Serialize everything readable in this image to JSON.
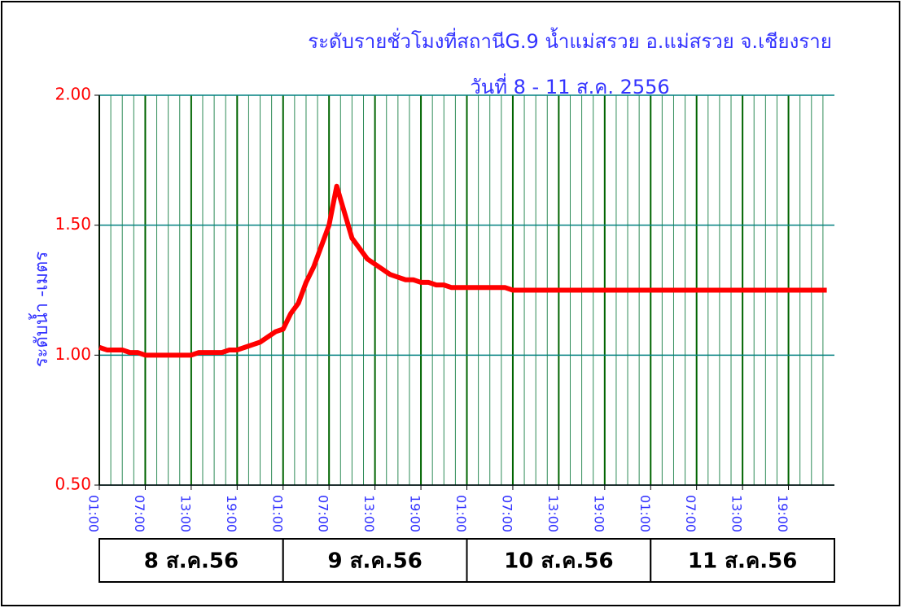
{
  "chart_data": {
    "type": "line",
    "title": "ระดับรายชั่วโมงที่สถานีG.9 น้ำแม่สรวย อ.แม่สรวย  จ.เชียงราย",
    "subtitle": "วันที่ 8 - 11 ส.ค. 2556",
    "y_label": "ระดับน้ำ -เมตร",
    "day_labels": [
      "8 ส.ค.56",
      "9 ส.ค.56",
      "10 ส.ค.56",
      "11 ส.ค.56"
    ],
    "x": [
      0,
      1,
      2,
      3,
      4,
      5,
      6,
      7,
      8,
      9,
      10,
      11,
      12,
      13,
      14,
      15,
      16,
      17,
      18,
      19,
      20,
      21,
      22,
      23,
      24,
      25,
      26,
      27,
      28,
      29,
      30,
      31,
      32,
      33,
      34,
      35,
      36,
      37,
      38,
      39,
      40,
      41,
      42,
      43,
      44,
      45,
      46,
      47,
      48,
      49,
      50,
      51,
      52,
      53,
      54,
      55,
      56,
      57,
      58,
      59,
      60,
      61,
      62,
      63,
      64,
      65,
      66,
      67,
      68,
      69,
      70,
      71,
      72,
      73,
      74,
      75,
      76,
      77,
      78,
      79,
      80,
      81,
      82,
      83,
      84,
      85,
      86,
      87,
      88,
      89,
      90,
      91,
      92,
      93,
      94,
      95
    ],
    "series": [
      {
        "name": "ระดับน้ำ",
        "color": "#ff0000",
        "values": [
          1.03,
          1.02,
          1.02,
          1.02,
          1.01,
          1.01,
          1.0,
          1.0,
          1.0,
          1.0,
          1.0,
          1.0,
          1.0,
          1.01,
          1.01,
          1.01,
          1.01,
          1.02,
          1.02,
          1.03,
          1.04,
          1.05,
          1.07,
          1.09,
          1.1,
          1.16,
          1.2,
          1.28,
          1.34,
          1.42,
          1.5,
          1.65,
          1.55,
          1.45,
          1.41,
          1.37,
          1.35,
          1.33,
          1.31,
          1.3,
          1.29,
          1.29,
          1.28,
          1.28,
          1.27,
          1.27,
          1.26,
          1.26,
          1.26,
          1.26,
          1.26,
          1.26,
          1.26,
          1.26,
          1.25,
          1.25,
          1.25,
          1.25,
          1.25,
          1.25,
          1.25,
          1.25,
          1.25,
          1.25,
          1.25,
          1.25,
          1.25,
          1.25,
          1.25,
          1.25,
          1.25,
          1.25,
          1.25,
          1.25,
          1.25,
          1.25,
          1.25,
          1.25,
          1.25,
          1.25,
          1.25,
          1.25,
          1.25,
          1.25,
          1.25,
          1.25,
          1.25,
          1.25,
          1.25,
          1.25,
          1.25,
          1.25,
          1.25,
          1.25,
          1.25,
          1.25
        ]
      }
    ],
    "xlim": [
      0,
      96
    ],
    "xticks": [
      {
        "value": 0,
        "label": "01:00"
      },
      {
        "value": 6,
        "label": "07:00"
      },
      {
        "value": 12,
        "label": "13:00"
      },
      {
        "value": 18,
        "label": "19:00"
      },
      {
        "value": 24,
        "label": "01:00"
      },
      {
        "value": 30,
        "label": "07:00"
      },
      {
        "value": 36,
        "label": "13:00"
      },
      {
        "value": 42,
        "label": "19:00"
      },
      {
        "value": 48,
        "label": "01:00"
      },
      {
        "value": 54,
        "label": "07:00"
      },
      {
        "value": 60,
        "label": "13:00"
      },
      {
        "value": 66,
        "label": "19:00"
      },
      {
        "value": 72,
        "label": "01:00"
      },
      {
        "value": 78,
        "label": "07:00"
      },
      {
        "value": 84,
        "label": "13:00"
      },
      {
        "value": 90,
        "label": "19:00"
      }
    ],
    "ylim": [
      0.5,
      2.0
    ],
    "yticks": [
      {
        "value": 0.5,
        "label": "0.50"
      },
      {
        "value": 1.0,
        "label": "1.00"
      },
      {
        "value": 1.5,
        "label": "1.50"
      },
      {
        "value": 2.0,
        "label": "2.00"
      }
    ],
    "grid": true
  }
}
